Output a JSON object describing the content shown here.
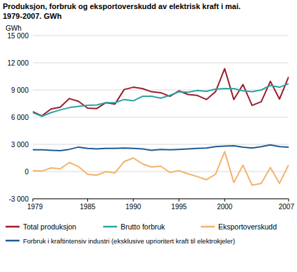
{
  "chart_data": {
    "type": "line",
    "title": "Produksjon, forbruk og eksportoverskudd av elektrisk kraft i mai. 1979-2007. GWh",
    "y_label": "GWh",
    "x": [
      1979,
      1980,
      1981,
      1982,
      1983,
      1984,
      1985,
      1986,
      1987,
      1988,
      1989,
      1990,
      1991,
      1992,
      1993,
      1994,
      1995,
      1996,
      1997,
      1998,
      1999,
      2000,
      2001,
      2002,
      2003,
      2004,
      2005,
      2006,
      2007
    ],
    "series": [
      {
        "name": "Total produksjon",
        "color": "#9b1c2c",
        "values": [
          6600,
          6150,
          6900,
          7100,
          8050,
          7750,
          7000,
          6950,
          7600,
          7450,
          9050,
          9300,
          9150,
          8800,
          8700,
          8300,
          8900,
          8500,
          8400,
          7950,
          8800,
          11350,
          7950,
          9600,
          7300,
          7700,
          9950,
          8000,
          10450
        ]
      },
      {
        "name": "Brutto forbruk",
        "color": "#2aa4a0",
        "values": [
          6500,
          6100,
          6500,
          6800,
          7050,
          7200,
          7300,
          7350,
          7600,
          7600,
          7950,
          7800,
          8300,
          8300,
          8100,
          8400,
          8800,
          8750,
          8950,
          8850,
          9100,
          9150,
          9150,
          8900,
          8800,
          9000,
          9500,
          9300,
          9700
        ]
      },
      {
        "name": "Eksportoverskudd",
        "color": "#f5b26b",
        "values": [
          100,
          50,
          400,
          300,
          1000,
          550,
          -300,
          -400,
          0,
          -150,
          1100,
          1500,
          850,
          500,
          600,
          -100,
          100,
          -250,
          -550,
          -900,
          -300,
          2200,
          -1200,
          700,
          -1500,
          -1300,
          450,
          -1300,
          750
        ]
      },
      {
        "name": "Forbruk i kraftintensiv industri (eksklusive uprioritert kraft til elektrokjeler)",
        "color": "#1f5a96",
        "values": [
          2400,
          2400,
          2350,
          2300,
          2450,
          2700,
          2550,
          2500,
          2550,
          2550,
          2600,
          2550,
          2500,
          2350,
          2450,
          2400,
          2450,
          2500,
          2550,
          2600,
          2750,
          2800,
          2850,
          2700,
          2600,
          2750,
          2950,
          2750,
          2700
        ]
      }
    ],
    "xlim": [
      1979,
      2007
    ],
    "xticks": [
      1979,
      1985,
      1990,
      1995,
      2000,
      2007
    ],
    "ylim": [
      -3000,
      15000
    ],
    "yticks": [
      {
        "value": -3000,
        "label": "-3 000"
      },
      0,
      {
        "value": 3000,
        "label": "3 000"
      },
      {
        "value": 6000,
        "label": "6 000"
      },
      {
        "value": 9000,
        "label": "9 000"
      },
      {
        "value": 12000,
        "label": "12 000"
      },
      {
        "value": 15000,
        "label": "15 000"
      }
    ],
    "grid": true,
    "legend": "bottom"
  }
}
